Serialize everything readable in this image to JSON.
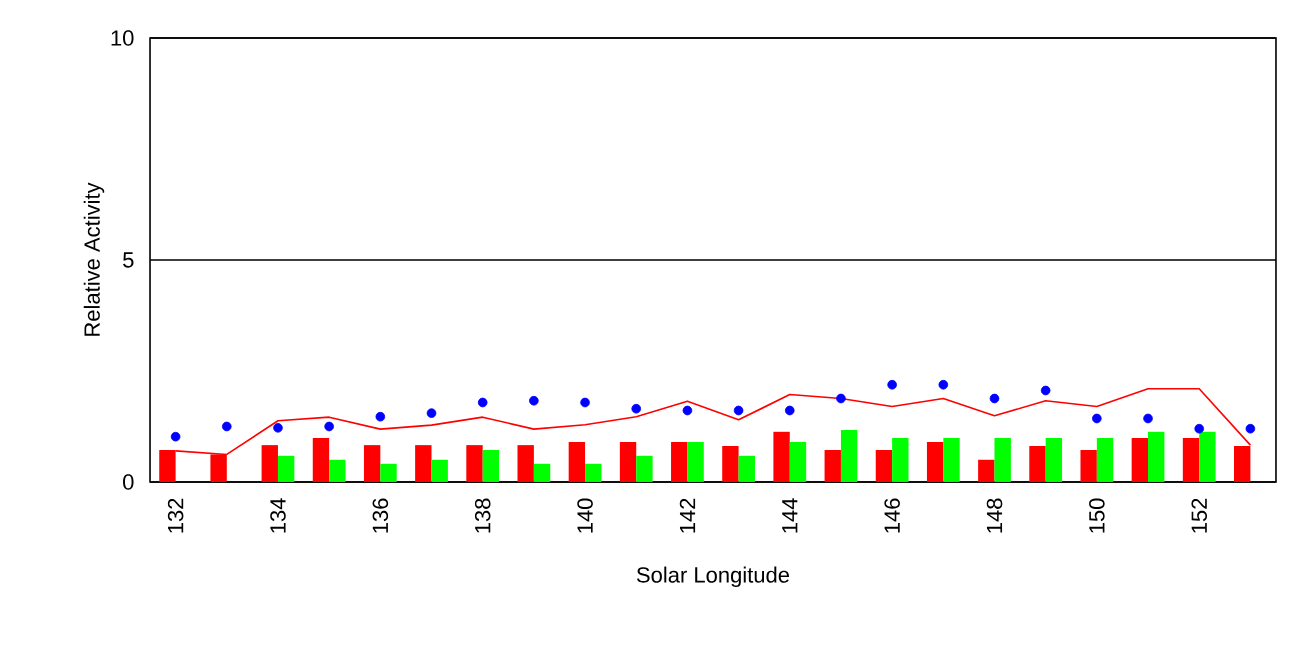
{
  "chart_data": {
    "type": "bar",
    "xlabel": "Solar Longitude",
    "ylabel": "Relative Activity",
    "categories": [
      "132",
      null,
      "134",
      null,
      "136",
      null,
      "138",
      null,
      "140",
      null,
      "142",
      null,
      "144",
      null,
      "146",
      null,
      "148",
      null,
      "150",
      null,
      "152",
      null
    ],
    "ylim": [
      0,
      10
    ],
    "yticks": [
      0,
      5,
      10
    ],
    "grid": "y",
    "series": [
      {
        "color": "#ff0000",
        "values": [
          0.72,
          0.62,
          0.83,
          0.99,
          0.83,
          0.83,
          0.83,
          0.83,
          0.9,
          0.9,
          0.9,
          0.81,
          1.13,
          0.72,
          0.72,
          0.9,
          0.5,
          0.81,
          0.72,
          0.99,
          0.99,
          0.81
        ]
      },
      {
        "color": "#00ff00",
        "values": [
          null,
          null,
          0.59,
          0.5,
          0.41,
          0.5,
          0.72,
          0.41,
          0.41,
          0.59,
          0.9,
          0.59,
          0.9,
          1.17,
          0.99,
          0.99,
          0.99,
          0.99,
          0.99,
          1.13,
          1.13,
          null
        ]
      },
      {
        "type": "scatter",
        "color": "#0000ff",
        "marker": "circle",
        "values": [
          1.02,
          1.25,
          1.22,
          1.25,
          1.47,
          1.55,
          1.79,
          1.83,
          1.79,
          1.65,
          1.61,
          1.61,
          1.61,
          1.88,
          2.19,
          2.19,
          1.88,
          2.06,
          1.43,
          1.43,
          1.2,
          1.2
        ]
      },
      {
        "type": "line",
        "color": "#ff0000",
        "marker": "none",
        "line_style": "solid",
        "values": [
          0.7,
          0.62,
          1.38,
          1.46,
          1.19,
          1.28,
          1.46,
          1.19,
          1.29,
          1.47,
          1.82,
          1.4,
          1.97,
          1.88,
          1.7,
          1.88,
          1.49,
          1.83,
          1.7,
          2.1,
          2.1,
          0.83
        ]
      }
    ]
  }
}
